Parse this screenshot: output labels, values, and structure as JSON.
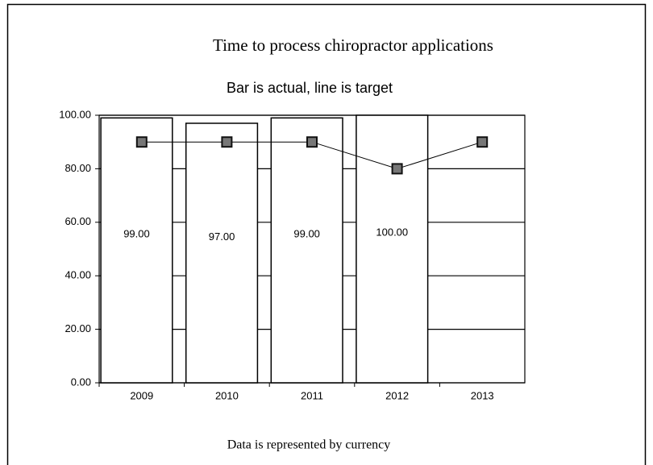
{
  "chart_data": {
    "type": "combo",
    "title": "Time to process chiropractor applications",
    "subtitle": "Bar is actual, line is target",
    "footer": "Data is represented by currency",
    "categories": [
      "2009",
      "2010",
      "2011",
      "2012",
      "2013"
    ],
    "series": [
      {
        "type": "bar",
        "color": "#ffffff",
        "values": [
          99,
          97,
          99,
          100,
          null
        ],
        "value_labels": [
          "99.00",
          "97.00",
          "99.00",
          "100.00",
          null
        ]
      },
      {
        "type": "line",
        "color": "#000000",
        "values": [
          90,
          90,
          90,
          80,
          90
        ]
      }
    ],
    "ylim": [
      0,
      100
    ],
    "yticks": [
      {
        "value": 0,
        "label": "0.00"
      },
      {
        "value": 20,
        "label": "20.00"
      },
      {
        "value": 40,
        "label": "40.00"
      },
      {
        "value": 60,
        "label": "60.00"
      },
      {
        "value": 80,
        "label": "80.00"
      },
      {
        "value": 100,
        "label": "100.00"
      }
    ],
    "grid": true
  }
}
